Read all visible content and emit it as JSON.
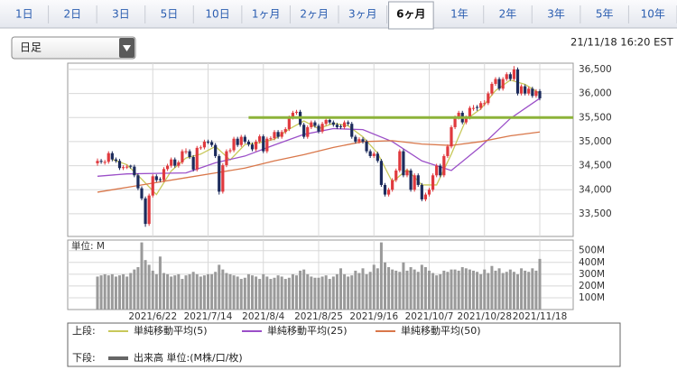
{
  "tabs": [
    "1日",
    "2日",
    "3日",
    "5日",
    "10日",
    "1ヶ月",
    "2ヶ月",
    "3ヶ月",
    "6ヶ月",
    "1年",
    "2年",
    "3年",
    "5年",
    "10年"
  ],
  "active_tab": "6ヶ月",
  "dropdown": "日足",
  "timestamp": "21/11/18 16:20 EST",
  "chart_data": {
    "type": "candlestick",
    "up_color": "#e0393e",
    "down_color": "#1c2b5c",
    "categories": [
      null,
      null,
      null,
      null,
      null,
      null,
      null,
      null,
      null,
      null,
      null,
      null,
      null,
      null,
      null,
      "2021/6/22",
      null,
      null,
      null,
      null,
      null,
      null,
      null,
      null,
      null,
      null,
      null,
      null,
      null,
      null,
      "2021/7/14",
      null,
      null,
      null,
      null,
      null,
      null,
      null,
      null,
      null,
      null,
      null,
      null,
      null,
      null,
      "2021/8/4",
      null,
      null,
      null,
      null,
      null,
      null,
      null,
      null,
      null,
      null,
      null,
      null,
      null,
      null,
      "2021/8/25",
      null,
      null,
      null,
      null,
      null,
      null,
      null,
      null,
      null,
      null,
      null,
      null,
      null,
      null,
      "2021/9/16",
      null,
      null,
      null,
      null,
      null,
      null,
      null,
      null,
      null,
      null,
      null,
      null,
      null,
      null,
      "2021/10/7",
      null,
      null,
      null,
      null,
      null,
      null,
      null,
      null,
      null,
      null,
      null,
      null,
      null,
      null,
      "2021/10/28",
      null,
      null,
      null,
      null,
      null,
      null,
      null,
      null,
      null,
      null,
      null,
      null,
      null,
      null,
      "2021/11/18"
    ],
    "ohlc": [
      [
        34550,
        34650,
        34500,
        34600
      ],
      [
        34600,
        34640,
        34540,
        34580
      ],
      [
        34560,
        34620,
        34520,
        34580
      ],
      [
        34580,
        34800,
        34540,
        34760
      ],
      [
        34760,
        34800,
        34590,
        34630
      ],
      [
        34630,
        34670,
        34560,
        34600
      ],
      [
        34600,
        34640,
        34410,
        34450
      ],
      [
        34450,
        34510,
        34410,
        34470
      ],
      [
        34470,
        34520,
        34430,
        34480
      ],
      [
        34500,
        34520,
        34440,
        34480
      ],
      [
        34480,
        34520,
        34260,
        34300
      ],
      [
        34300,
        34340,
        33990,
        34030
      ],
      [
        34030,
        34070,
        33780,
        33820
      ],
      [
        33820,
        33860,
        33230,
        33290
      ],
      [
        33290,
        33920,
        33250,
        33880
      ],
      [
        33880,
        34320,
        33840,
        34280
      ],
      [
        34280,
        34320,
        34160,
        34200
      ],
      [
        34220,
        34260,
        34160,
        34200
      ],
      [
        34200,
        34470,
        34160,
        34430
      ],
      [
        34430,
        34540,
        34390,
        34500
      ],
      [
        34500,
        34670,
        34460,
        34630
      ],
      [
        34630,
        34670,
        34460,
        34500
      ],
      [
        34500,
        34610,
        34460,
        34570
      ],
      [
        34570,
        34840,
        34530,
        34800
      ],
      [
        34780,
        34860,
        34740,
        34800
      ],
      [
        34800,
        34840,
        34640,
        34680
      ],
      [
        34680,
        34720,
        34380,
        34420
      ],
      [
        34420,
        34910,
        34380,
        34870
      ],
      [
        34870,
        34920,
        34830,
        34880
      ],
      [
        34880,
        35040,
        34840,
        35000
      ],
      [
        35000,
        35040,
        34950,
        34990
      ],
      [
        34990,
        35030,
        34890,
        34930
      ],
      [
        34930,
        34970,
        34660,
        34700
      ],
      [
        34700,
        34740,
        33900,
        33960
      ],
      [
        33960,
        34550,
        33920,
        34510
      ],
      [
        34510,
        34840,
        34470,
        34800
      ],
      [
        34800,
        34860,
        34760,
        34820
      ],
      [
        34820,
        35100,
        34780,
        35060
      ],
      [
        35060,
        35100,
        34890,
        34930
      ],
      [
        34930,
        35140,
        34890,
        35100
      ],
      [
        35100,
        35140,
        34960,
        35000
      ],
      [
        35000,
        35040,
        34900,
        34940
      ],
      [
        34940,
        34980,
        34800,
        34840
      ],
      [
        34840,
        35040,
        34800,
        35000
      ],
      [
        35000,
        35150,
        34960,
        35110
      ],
      [
        35110,
        35150,
        34760,
        34800
      ],
      [
        34800,
        35100,
        34760,
        35060
      ],
      [
        35060,
        35110,
        35020,
        35070
      ],
      [
        35070,
        35240,
        35030,
        35200
      ],
      [
        35200,
        35240,
        35060,
        35100
      ],
      [
        35100,
        35240,
        35060,
        35200
      ],
      [
        35200,
        35300,
        35160,
        35260
      ],
      [
        35260,
        35540,
        35220,
        35500
      ],
      [
        35500,
        35640,
        35460,
        35600
      ],
      [
        35600,
        35660,
        35560,
        35620
      ],
      [
        35620,
        35660,
        35310,
        35350
      ],
      [
        35350,
        35390,
        35060,
        35100
      ],
      [
        35100,
        35340,
        35060,
        35300
      ],
      [
        35300,
        35440,
        35260,
        35400
      ],
      [
        35400,
        35440,
        35290,
        35330
      ],
      [
        35330,
        35370,
        35170,
        35210
      ],
      [
        35210,
        35410,
        35170,
        35370
      ],
      [
        35370,
        35490,
        35330,
        35450
      ],
      [
        35450,
        35490,
        35360,
        35400
      ],
      [
        35400,
        35440,
        35310,
        35350
      ],
      [
        35350,
        35390,
        35260,
        35300
      ],
      [
        35320,
        35360,
        35260,
        35300
      ],
      [
        35300,
        35440,
        35260,
        35400
      ],
      [
        35400,
        35440,
        35330,
        35370
      ],
      [
        35370,
        35410,
        35060,
        35100
      ],
      [
        35100,
        35140,
        34960,
        35000
      ],
      [
        35000,
        35090,
        34960,
        35050
      ],
      [
        35050,
        35090,
        34960,
        35000
      ],
      [
        35000,
        35040,
        34760,
        34800
      ],
      [
        34800,
        34840,
        34660,
        34700
      ],
      [
        34700,
        34790,
        34660,
        34750
      ],
      [
        34750,
        34790,
        34560,
        34600
      ],
      [
        34600,
        34640,
        34060,
        34100
      ],
      [
        34100,
        34140,
        33860,
        33900
      ],
      [
        33900,
        34040,
        33860,
        34000
      ],
      [
        34000,
        34240,
        33960,
        34200
      ],
      [
        34200,
        34440,
        34160,
        34400
      ],
      [
        34400,
        34840,
        34360,
        34800
      ],
      [
        34800,
        34840,
        34260,
        34300
      ],
      [
        34300,
        34440,
        34260,
        34400
      ],
      [
        34400,
        34440,
        33960,
        34000
      ],
      [
        34000,
        34340,
        33960,
        34300
      ],
      [
        34300,
        34340,
        34060,
        34100
      ],
      [
        34100,
        34140,
        33760,
        33800
      ],
      [
        33800,
        33940,
        33760,
        33900
      ],
      [
        33900,
        34040,
        33860,
        34000
      ],
      [
        34000,
        34340,
        33960,
        34300
      ],
      [
        34300,
        34540,
        34260,
        34500
      ],
      [
        34500,
        34540,
        34260,
        34300
      ],
      [
        34300,
        34740,
        34260,
        34700
      ],
      [
        34700,
        34940,
        34660,
        34900
      ],
      [
        34900,
        35340,
        34860,
        35300
      ],
      [
        35300,
        35540,
        35260,
        35500
      ],
      [
        35500,
        35640,
        35460,
        35600
      ],
      [
        35600,
        35640,
        35360,
        35400
      ],
      [
        35400,
        35540,
        35360,
        35500
      ],
      [
        35500,
        35740,
        35460,
        35700
      ],
      [
        35680,
        35760,
        35640,
        35700
      ],
      [
        35720,
        35760,
        35640,
        35700
      ],
      [
        35700,
        35840,
        35660,
        35800
      ],
      [
        35780,
        35860,
        35740,
        35800
      ],
      [
        35800,
        36040,
        35760,
        36000
      ],
      [
        36000,
        36240,
        35960,
        36200
      ],
      [
        36200,
        36340,
        36160,
        36300
      ],
      [
        36300,
        36340,
        36060,
        36100
      ],
      [
        36100,
        36340,
        36060,
        36300
      ],
      [
        36300,
        36440,
        36260,
        36400
      ],
      [
        36400,
        36440,
        36260,
        36300
      ],
      [
        36300,
        36570,
        36260,
        36500
      ],
      [
        36500,
        36540,
        35960,
        36000
      ],
      [
        36000,
        36190,
        35960,
        36150
      ],
      [
        36150,
        36190,
        35960,
        36000
      ],
      [
        36000,
        36140,
        35960,
        36100
      ],
      [
        36100,
        36140,
        35910,
        35950
      ],
      [
        35950,
        36090,
        35910,
        36050
      ],
      [
        36050,
        36090,
        35860,
        35900
      ]
    ],
    "ylim": [
      33030,
      36630
    ],
    "yticks": [
      {
        "value": 33500,
        "label": "33,500"
      },
      {
        "value": 34000,
        "label": "34,000"
      },
      {
        "value": 34500,
        "label": "34,500"
      },
      {
        "value": 35000,
        "label": "35,000"
      },
      {
        "value": 35500,
        "label": "35,500"
      },
      {
        "value": 36000,
        "label": "36,000"
      },
      {
        "value": 36500,
        "label": "36,500"
      }
    ],
    "reference_line": {
      "value": 35500,
      "from": 41,
      "color": "#8db33a"
    },
    "legend_upper": "上段:",
    "legend_lower": "下段:",
    "series": [
      {
        "name": "単純移動平均(5)",
        "color": "#c8c85a",
        "x": [
          4,
          8,
          12,
          16,
          20,
          24,
          28,
          32,
          36,
          40,
          44,
          48,
          52,
          56,
          60,
          64,
          68,
          72,
          76,
          80,
          84,
          88,
          92,
          96,
          100,
          104,
          108,
          112,
          116,
          120
        ],
        "values": [
          34630,
          34520,
          34220,
          33900,
          34390,
          34660,
          34740,
          34900,
          34620,
          34940,
          34980,
          35050,
          35260,
          35430,
          35270,
          35380,
          35330,
          35100,
          34760,
          34160,
          34420,
          34100,
          34100,
          34740,
          35460,
          35680,
          36060,
          36280,
          36190,
          36000
        ]
      },
      {
        "name": "単純移動平均(25)",
        "color": "#9b4fc8",
        "x": [
          0,
          8,
          16,
          24,
          32,
          40,
          48,
          56,
          64,
          72,
          80,
          88,
          96,
          104,
          112,
          120
        ],
        "values": [
          34280,
          34330,
          34340,
          34350,
          34560,
          34700,
          34930,
          35150,
          35270,
          35250,
          35000,
          34600,
          34400,
          34900,
          35480,
          35900
        ]
      },
      {
        "name": "単純移動平均(50)",
        "color": "#d9774a",
        "x": [
          0,
          8,
          16,
          24,
          32,
          40,
          48,
          56,
          64,
          72,
          80,
          88,
          96,
          104,
          112,
          120
        ],
        "values": [
          33950,
          34050,
          34150,
          34250,
          34350,
          34450,
          34600,
          34730,
          34880,
          35000,
          35020,
          34950,
          34920,
          35000,
          35120,
          35200
        ]
      }
    ],
    "volume": {
      "label": "単位: M",
      "legend": "出来高 単位:(M株/口/枚)",
      "color": "#9a9a9a",
      "values": [
        280,
        290,
        300,
        290,
        300,
        280,
        290,
        300,
        280,
        310,
        340,
        360,
        570,
        420,
        380,
        330,
        300,
        450,
        310,
        300,
        280,
        290,
        300,
        260,
        290,
        300,
        320,
        300,
        280,
        290,
        300,
        300,
        320,
        380,
        340,
        310,
        300,
        290,
        280,
        260,
        270,
        300,
        290,
        280,
        260,
        300,
        280,
        260,
        270,
        290,
        280,
        260,
        270,
        300,
        290,
        330,
        340,
        300,
        280,
        270,
        270,
        280,
        290,
        260,
        280,
        300,
        350,
        300,
        280,
        290,
        330,
        310,
        350,
        300,
        320,
        380,
        350,
        570,
        400,
        360,
        340,
        330,
        320,
        400,
        330,
        360,
        340,
        320,
        380,
        360,
        330,
        310,
        290,
        300,
        330,
        320,
        340,
        340,
        330,
        360,
        350,
        340,
        330,
        320,
        300,
        340,
        310,
        370,
        330,
        350,
        310,
        320,
        340,
        320,
        300,
        350,
        330,
        320,
        350,
        330,
        430
      ],
      "ylim": [
        0,
        590
      ],
      "yticks": [
        {
          "value": 100,
          "label": "100M"
        },
        {
          "value": 200,
          "label": "200M"
        },
        {
          "value": 300,
          "label": "300M"
        },
        {
          "value": 400,
          "label": "400M"
        },
        {
          "value": 500,
          "label": "500M"
        }
      ]
    }
  }
}
